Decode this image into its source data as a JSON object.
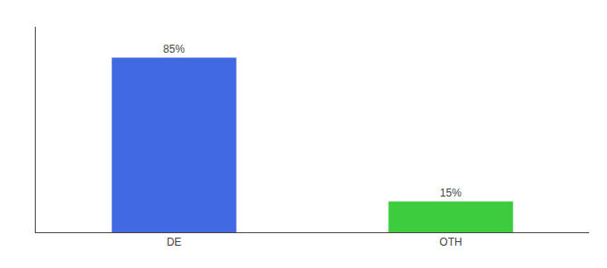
{
  "chart_data": {
    "type": "bar",
    "categories": [
      "DE",
      "OTH"
    ],
    "values": [
      85,
      15
    ],
    "value_labels": [
      "85%",
      "15%"
    ],
    "colors": [
      "#4169e1",
      "#3dcc3d"
    ],
    "ylim": [
      0,
      100
    ],
    "grid": false,
    "data_labels": true,
    "tick_labels": "x"
  }
}
